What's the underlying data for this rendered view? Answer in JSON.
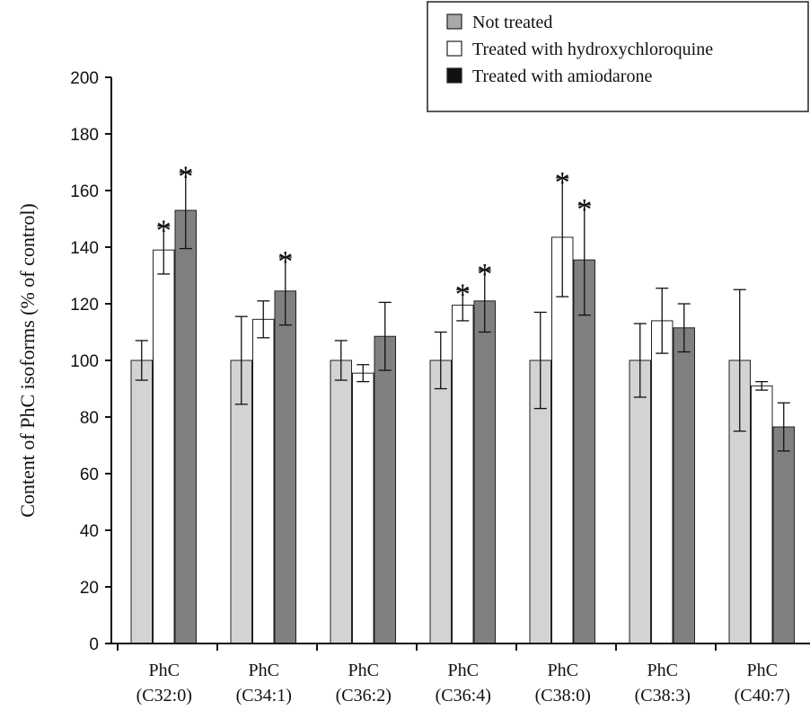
{
  "chart_data": {
    "type": "bar",
    "ylabel": "Content of PhC isoforms (% of control)",
    "xlabel": "",
    "ylim": [
      0,
      200
    ],
    "yticks": [
      0,
      20,
      40,
      60,
      80,
      100,
      120,
      140,
      160,
      180,
      200
    ],
    "grid": false,
    "legend_position": "top-right",
    "categories": [
      {
        "line1": "PhC",
        "line2": "(C32:0)"
      },
      {
        "line1": "PhC",
        "line2": "(C34:1)"
      },
      {
        "line1": "PhC",
        "line2": "(C36:2)"
      },
      {
        "line1": "PhC",
        "line2": "(C36:4)"
      },
      {
        "line1": "PhC",
        "line2": "(C38:0)"
      },
      {
        "line1": "PhC",
        "line2": "(C38:3)"
      },
      {
        "line1": "PhC",
        "line2": "(C40:7)"
      }
    ],
    "series": [
      {
        "name": "Not treated",
        "color": "#d3d3d3",
        "legend_color": "#a8a8a8",
        "values": [
          100,
          100,
          100,
          100,
          100,
          100,
          100
        ],
        "errors": [
          7,
          15.5,
          7,
          10,
          17,
          13,
          25
        ],
        "significant": [
          false,
          false,
          false,
          false,
          false,
          false,
          false
        ]
      },
      {
        "name": "Treated with  hydroxychloroquine",
        "color": "#ffffff",
        "legend_color": "#ffffff",
        "values": [
          139,
          114.5,
          95.5,
          119.5,
          143.5,
          114,
          91
        ],
        "errors": [
          8.5,
          6.5,
          3,
          5.5,
          21,
          11.5,
          1.5
        ],
        "significant": [
          true,
          false,
          false,
          true,
          true,
          false,
          false
        ]
      },
      {
        "name": "Treated with  amiodarone",
        "color": "#808080",
        "legend_color": "#111111",
        "values": [
          153,
          124.5,
          108.5,
          121,
          135.5,
          111.5,
          76.5
        ],
        "errors": [
          13.5,
          12,
          12,
          11,
          19.5,
          8.5,
          8.5
        ],
        "significant": [
          true,
          true,
          false,
          true,
          true,
          false,
          false
        ]
      }
    ],
    "significance_marker": "*"
  }
}
